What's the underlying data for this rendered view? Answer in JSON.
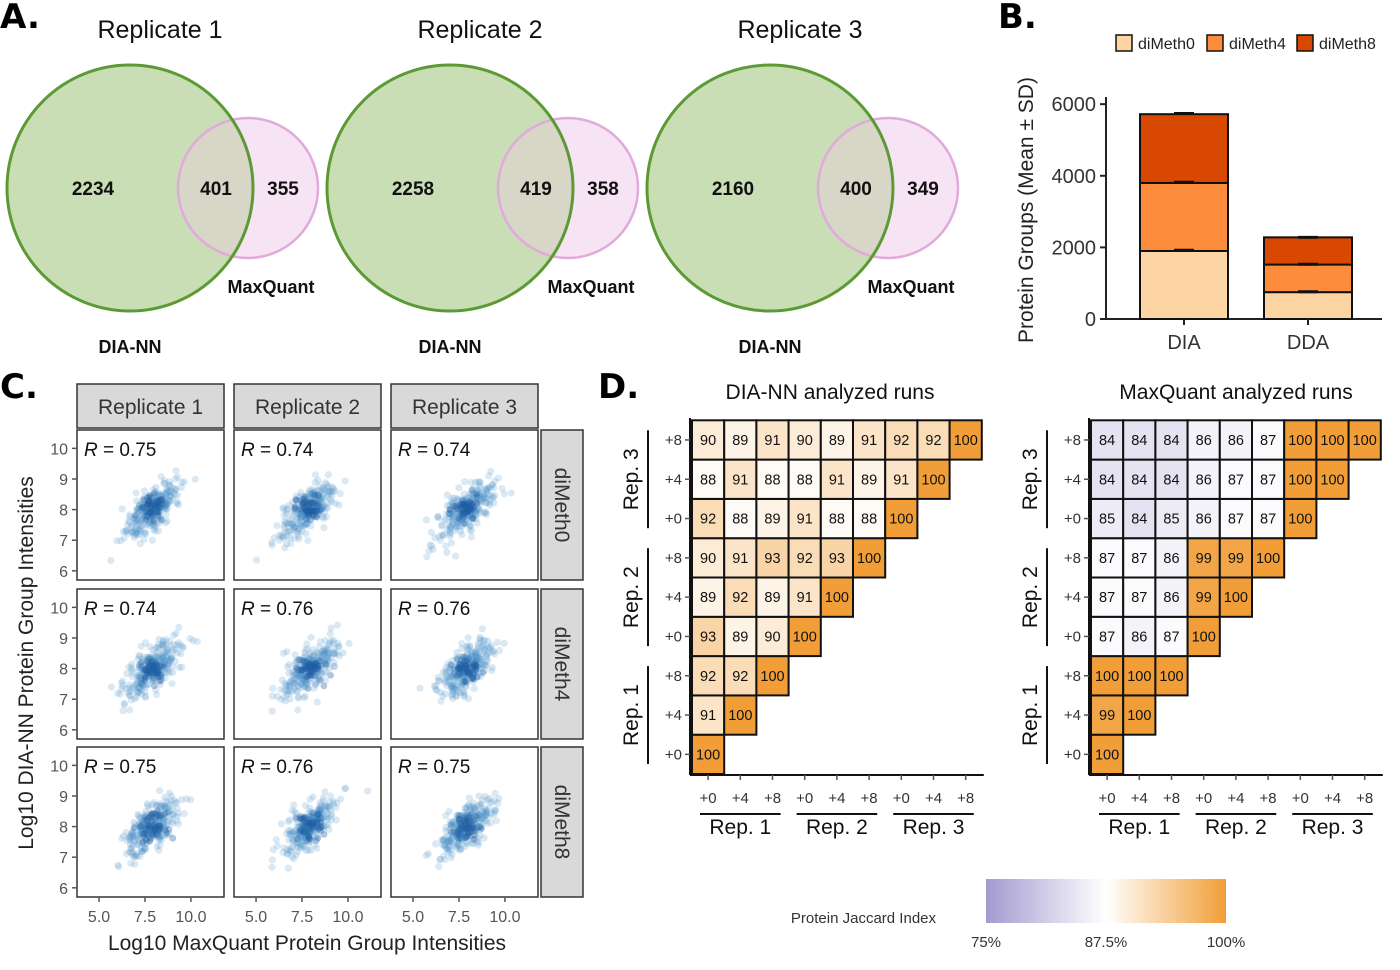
{
  "panel_letters": {
    "a": "A.",
    "b": "B.",
    "c": "C.",
    "d": "D."
  },
  "chart_data": [
    {
      "type": "venn",
      "panel": "A",
      "sets": [
        "DIA-NN",
        "MaxQuant"
      ],
      "replicates": [
        {
          "title": "Replicate 1",
          "dia_only": 2234,
          "overlap": 401,
          "mq_only": 355
        },
        {
          "title": "Replicate 2",
          "dia_only": 2258,
          "overlap": 419,
          "mq_only": 358
        },
        {
          "title": "Replicate 3",
          "dia_only": 2160,
          "overlap": 400,
          "mq_only": 349
        }
      ],
      "colors": {
        "dia_fill": "#c9deb5",
        "dia_stroke": "#5c9a35",
        "mq_fill": "#f6e4f4",
        "mq_stroke": "#e2a9dc",
        "overlap_fill": "#d8d6c6"
      }
    },
    {
      "type": "bar",
      "panel": "B",
      "stacked": true,
      "categories": [
        "DIA",
        "DDA"
      ],
      "series": [
        {
          "name": "diMeth0",
          "color": "#fdd5a4",
          "values": [
            1900,
            750
          ]
        },
        {
          "name": "diMeth4",
          "color": "#fd8d3c",
          "values": [
            1900,
            770
          ]
        },
        {
          "name": "diMeth8",
          "color": "#d94801",
          "values": [
            1920,
            760
          ]
        }
      ],
      "cumulative_error_tops": [
        [
          1920,
          3820,
          5740
        ],
        [
          760,
          1530,
          2280
        ]
      ],
      "ylabel": "Protein Groups (Mean ± SD)",
      "ylim": [
        0,
        6200
      ],
      "yticks": [
        0,
        2000,
        4000,
        6000
      ],
      "legend_position": "top"
    },
    {
      "type": "scatter",
      "panel": "C",
      "xlabel": "Log10 MaxQuant Protein Group Intensities",
      "ylabel": "Log10 DIA-NN Protein Group Intensities",
      "xticks": [
        "5.0",
        "7.5",
        "10.0"
      ],
      "yticks": [
        "6",
        "7",
        "8",
        "9",
        "10"
      ],
      "xlim": [
        3.8,
        11.8
      ],
      "ylim": [
        5.7,
        10.6
      ],
      "col_labels": [
        "Replicate 1",
        "Replicate 2",
        "Replicate 3"
      ],
      "row_labels": [
        "diMeth0",
        "diMeth4",
        "diMeth8"
      ],
      "r_prefix": "R",
      "r_values": [
        [
          "= 0.75",
          "= 0.74",
          "= 0.74"
        ],
        [
          "= 0.74",
          "= 0.76",
          "= 0.76"
        ],
        [
          "= 0.75",
          "= 0.76",
          "= 0.75"
        ]
      ],
      "point_color": "#4a8fc9",
      "center": [
        7.9,
        8.0
      ]
    },
    {
      "type": "heatmap",
      "panel": "D",
      "lower_triangular": true,
      "axis_labels": [
        "+0",
        "+4",
        "+8",
        "+0",
        "+4",
        "+8",
        "+0",
        "+4",
        "+8"
      ],
      "groups": [
        "Rep. 1",
        "Rep. 2",
        "Rep. 3"
      ],
      "colorbar": {
        "title": "Protein Jaccard Index",
        "ticks": [
          "75%",
          "87.5%",
          "100%"
        ],
        "low": "#a39bd0",
        "mid": "#ffffff",
        "high": "#f29e38"
      },
      "matrices": [
        {
          "title": "DIA-NN analyzed runs",
          "rows": [
            [
              100
            ],
            [
              91,
              100
            ],
            [
              92,
              92,
              100
            ],
            [
              93,
              89,
              90,
              100
            ],
            [
              89,
              92,
              89,
              91,
              100
            ],
            [
              90,
              91,
              93,
              92,
              93,
              100
            ],
            [
              92,
              88,
              89,
              91,
              88,
              88,
              100
            ],
            [
              88,
              91,
              88,
              88,
              91,
              89,
              91,
              100
            ],
            [
              90,
              89,
              91,
              90,
              89,
              91,
              92,
              92,
              100
            ]
          ]
        },
        {
          "title": "MaxQuant analyzed runs",
          "rows": [
            [
              100
            ],
            [
              99,
              100
            ],
            [
              100,
              100,
              100
            ],
            [
              87,
              86,
              87,
              100
            ],
            [
              87,
              87,
              86,
              99,
              100
            ],
            [
              87,
              87,
              86,
              99,
              99,
              100
            ],
            [
              85,
              84,
              85,
              86,
              87,
              87,
              100
            ],
            [
              84,
              84,
              84,
              86,
              87,
              87,
              100,
              100
            ],
            [
              84,
              84,
              84,
              86,
              86,
              87,
              100,
              100,
              100
            ]
          ]
        }
      ]
    }
  ]
}
